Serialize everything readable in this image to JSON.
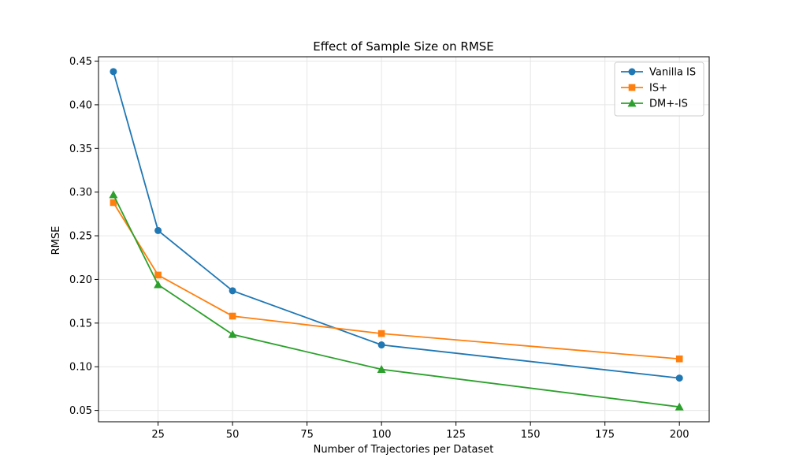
{
  "chart_data": {
    "type": "line",
    "title": "Effect of Sample Size on RMSE",
    "xlabel": "Number of Trajectories per Dataset",
    "ylabel": "RMSE",
    "x": [
      10,
      25,
      50,
      100,
      200
    ],
    "xlim": [
      5,
      210
    ],
    "ylim": [
      0.037,
      0.455
    ],
    "xticks": [
      25,
      50,
      75,
      100,
      125,
      150,
      175,
      200
    ],
    "yticks": [
      0.05,
      0.1,
      0.15,
      0.2,
      0.25,
      0.3,
      0.35,
      0.4,
      0.45
    ],
    "ytick_labels": [
      "0.05",
      "0.10",
      "0.15",
      "0.20",
      "0.25",
      "0.30",
      "0.35",
      "0.40",
      "0.45"
    ],
    "grid": true,
    "legend_position": "top-right",
    "series": [
      {
        "name": "Vanilla IS",
        "color": "#1f77b4",
        "marker": "circle",
        "values": [
          0.438,
          0.256,
          0.187,
          0.125,
          0.087
        ]
      },
      {
        "name": "IS+",
        "color": "#ff7f0e",
        "marker": "square",
        "values": [
          0.288,
          0.205,
          0.158,
          0.138,
          0.109
        ]
      },
      {
        "name": "DM+-IS",
        "color": "#2ca02c",
        "marker": "triangle",
        "values": [
          0.297,
          0.194,
          0.137,
          0.097,
          0.054
        ]
      }
    ]
  }
}
